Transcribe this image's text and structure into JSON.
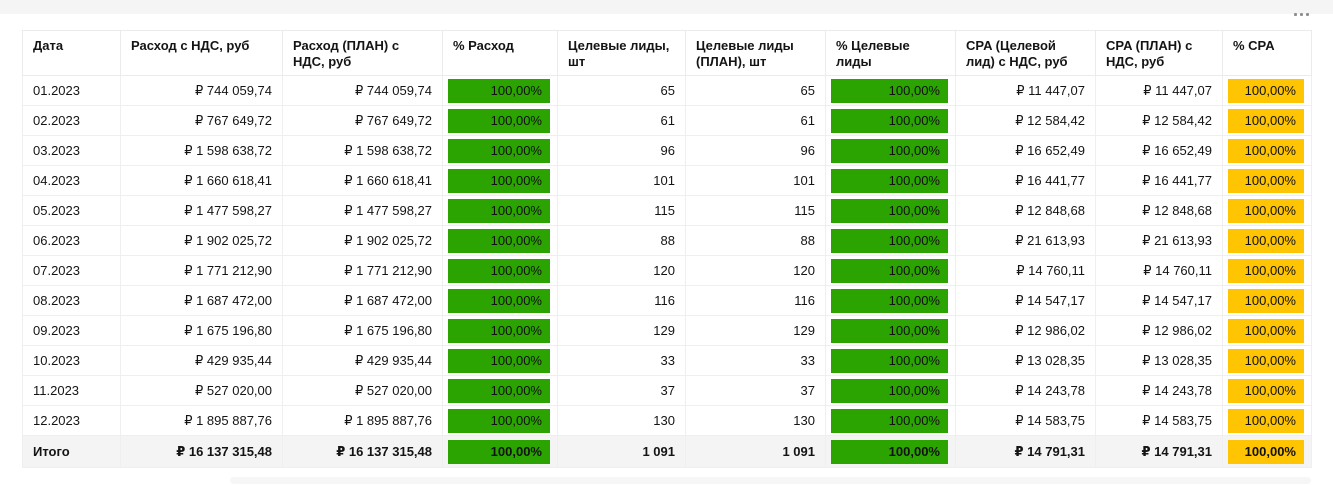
{
  "colors": {
    "badge_green": "#2ba402",
    "badge_yellow": "#ffc402"
  },
  "icons": {
    "more_options": "•••"
  },
  "table": {
    "columns": [
      {
        "id": "date",
        "label": "Дата",
        "type": "text"
      },
      {
        "id": "spend",
        "label": "Расход с НДС, руб",
        "type": "number"
      },
      {
        "id": "spend_plan",
        "label": "Расход (ПЛАН) с НДС, руб",
        "type": "number"
      },
      {
        "id": "spend_pct",
        "label": "% Расход",
        "type": "badge",
        "badge": "badge_green"
      },
      {
        "id": "leads",
        "label": "Целевые лиды, шт",
        "type": "number"
      },
      {
        "id": "leads_plan",
        "label": "Целевые лиды (ПЛАН), шт",
        "type": "number"
      },
      {
        "id": "leads_pct",
        "label": "% Целевые лиды",
        "type": "badge",
        "badge": "badge_green"
      },
      {
        "id": "cpa",
        "label": "CPA (Целевой лид) с НДС, руб",
        "type": "number"
      },
      {
        "id": "cpa_plan",
        "label": "CPA (ПЛАН) с НДС, руб",
        "type": "number"
      },
      {
        "id": "cpa_pct",
        "label": "% CPA",
        "type": "badge",
        "badge": "badge_yellow"
      }
    ],
    "rows": [
      {
        "date": "01.2023",
        "spend": "₽ 744 059,74",
        "spend_plan": "₽ 744 059,74",
        "spend_pct": "100,00%",
        "leads": "65",
        "leads_plan": "65",
        "leads_pct": "100,00%",
        "cpa": "₽ 11 447,07",
        "cpa_plan": "₽ 11 447,07",
        "cpa_pct": "100,00%"
      },
      {
        "date": "02.2023",
        "spend": "₽ 767 649,72",
        "spend_plan": "₽ 767 649,72",
        "spend_pct": "100,00%",
        "leads": "61",
        "leads_plan": "61",
        "leads_pct": "100,00%",
        "cpa": "₽ 12 584,42",
        "cpa_plan": "₽ 12 584,42",
        "cpa_pct": "100,00%"
      },
      {
        "date": "03.2023",
        "spend": "₽ 1 598 638,72",
        "spend_plan": "₽ 1 598 638,72",
        "spend_pct": "100,00%",
        "leads": "96",
        "leads_plan": "96",
        "leads_pct": "100,00%",
        "cpa": "₽ 16 652,49",
        "cpa_plan": "₽ 16 652,49",
        "cpa_pct": "100,00%"
      },
      {
        "date": "04.2023",
        "spend": "₽ 1 660 618,41",
        "spend_plan": "₽ 1 660 618,41",
        "spend_pct": "100,00%",
        "leads": "101",
        "leads_plan": "101",
        "leads_pct": "100,00%",
        "cpa": "₽ 16 441,77",
        "cpa_plan": "₽ 16 441,77",
        "cpa_pct": "100,00%"
      },
      {
        "date": "05.2023",
        "spend": "₽ 1 477 598,27",
        "spend_plan": "₽ 1 477 598,27",
        "spend_pct": "100,00%",
        "leads": "115",
        "leads_plan": "115",
        "leads_pct": "100,00%",
        "cpa": "₽ 12 848,68",
        "cpa_plan": "₽ 12 848,68",
        "cpa_pct": "100,00%"
      },
      {
        "date": "06.2023",
        "spend": "₽ 1 902 025,72",
        "spend_plan": "₽ 1 902 025,72",
        "spend_pct": "100,00%",
        "leads": "88",
        "leads_plan": "88",
        "leads_pct": "100,00%",
        "cpa": "₽ 21 613,93",
        "cpa_plan": "₽ 21 613,93",
        "cpa_pct": "100,00%"
      },
      {
        "date": "07.2023",
        "spend": "₽ 1 771 212,90",
        "spend_plan": "₽ 1 771 212,90",
        "spend_pct": "100,00%",
        "leads": "120",
        "leads_plan": "120",
        "leads_pct": "100,00%",
        "cpa": "₽ 14 760,11",
        "cpa_plan": "₽ 14 760,11",
        "cpa_pct": "100,00%"
      },
      {
        "date": "08.2023",
        "spend": "₽ 1 687 472,00",
        "spend_plan": "₽ 1 687 472,00",
        "spend_pct": "100,00%",
        "leads": "116",
        "leads_plan": "116",
        "leads_pct": "100,00%",
        "cpa": "₽ 14 547,17",
        "cpa_plan": "₽ 14 547,17",
        "cpa_pct": "100,00%"
      },
      {
        "date": "09.2023",
        "spend": "₽ 1 675 196,80",
        "spend_plan": "₽ 1 675 196,80",
        "spend_pct": "100,00%",
        "leads": "129",
        "leads_plan": "129",
        "leads_pct": "100,00%",
        "cpa": "₽ 12 986,02",
        "cpa_plan": "₽ 12 986,02",
        "cpa_pct": "100,00%"
      },
      {
        "date": "10.2023",
        "spend": "₽ 429 935,44",
        "spend_plan": "₽ 429 935,44",
        "spend_pct": "100,00%",
        "leads": "33",
        "leads_plan": "33",
        "leads_pct": "100,00%",
        "cpa": "₽ 13 028,35",
        "cpa_plan": "₽ 13 028,35",
        "cpa_pct": "100,00%"
      },
      {
        "date": "11.2023",
        "spend": "₽ 527 020,00",
        "spend_plan": "₽ 527 020,00",
        "spend_pct": "100,00%",
        "leads": "37",
        "leads_plan": "37",
        "leads_pct": "100,00%",
        "cpa": "₽ 14 243,78",
        "cpa_plan": "₽ 14 243,78",
        "cpa_pct": "100,00%"
      },
      {
        "date": "12.2023",
        "spend": "₽ 1 895 887,76",
        "spend_plan": "₽ 1 895 887,76",
        "spend_pct": "100,00%",
        "leads": "130",
        "leads_plan": "130",
        "leads_pct": "100,00%",
        "cpa": "₽ 14 583,75",
        "cpa_plan": "₽ 14 583,75",
        "cpa_pct": "100,00%"
      }
    ],
    "total_row": {
      "date": "Итого",
      "spend": "₽ 16 137 315,48",
      "spend_plan": "₽ 16 137 315,48",
      "spend_pct": "100,00%",
      "leads": "1 091",
      "leads_plan": "1 091",
      "leads_pct": "100,00%",
      "cpa": "₽ 14 791,31",
      "cpa_plan": "₽ 14 791,31",
      "cpa_pct": "100,00%"
    }
  }
}
